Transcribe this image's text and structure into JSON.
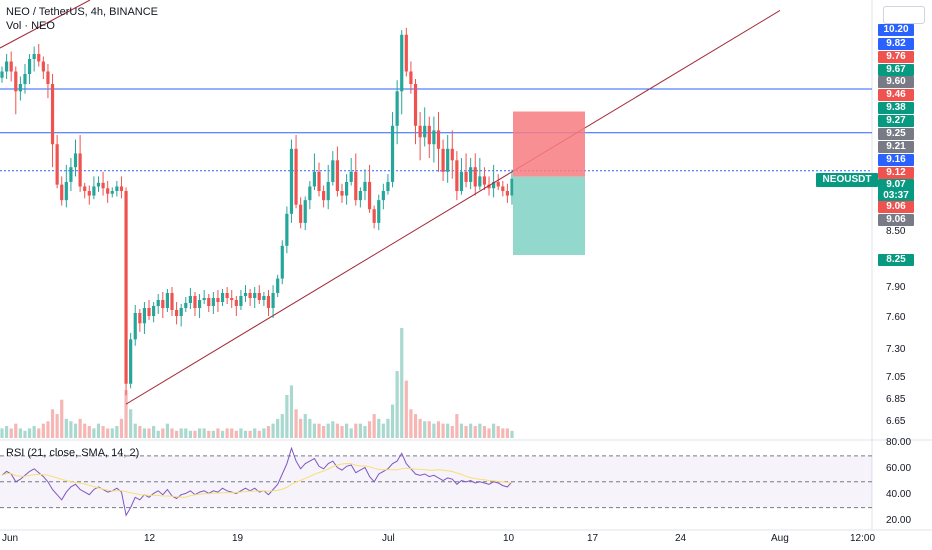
{
  "legend": {
    "title": "NEO / TetherUS, 4h, BINANCE",
    "volume": "Vol · NEO",
    "rsi": "RSI (21, close, SMA, 14, 2)"
  },
  "colors": {
    "up": "#26a69a",
    "down": "#ef5350",
    "trendline": "#a52a3a",
    "hline": "#2962ff",
    "rsi_line": "#7e57c2",
    "rsi_ma": "#f7e074",
    "stop_zone": "#f77c80",
    "target_zone": "#7fd1c4"
  },
  "price_scale": {
    "boxes": [
      {
        "label": "10.20",
        "color": "#2962ff"
      },
      {
        "label": "9.82",
        "color": "#2962ff"
      },
      {
        "label": "9.76",
        "color": "#ef5350"
      },
      {
        "label": "9.67",
        "color": "#089981"
      },
      {
        "label": "9.60",
        "color": "#787b86"
      },
      {
        "label": "9.46",
        "color": "#ef5350"
      },
      {
        "label": "9.38",
        "color": "#089981"
      },
      {
        "label": "9.27",
        "color": "#089981"
      },
      {
        "label": "9.25",
        "color": "#787b86"
      },
      {
        "label": "9.21",
        "color": "#787b86"
      },
      {
        "label": "9.16",
        "color": "#2962ff"
      },
      {
        "label": "9.12",
        "color": "#ef5350"
      },
      {
        "label": "9.07",
        "color": "#089981"
      },
      {
        "label": "03:37",
        "color": "#089981"
      },
      {
        "label": "9.06",
        "color": "#ef5350"
      },
      {
        "label": "9.06",
        "color": "#787b86"
      },
      {
        "label": "8.25",
        "color": "#089981"
      }
    ],
    "ticks": [
      "8.50",
      "7.90",
      "7.60",
      "7.30",
      "7.05",
      "6.85",
      "6.65"
    ],
    "ticker_label": "NEOUSDT"
  },
  "rsi_scale": {
    "ticks": [
      "80.00",
      "60.00",
      "40.00",
      "20.00"
    ]
  },
  "x_axis": {
    "ticks": [
      "Jun",
      "12",
      "19",
      "Jul",
      "10",
      "17",
      "24",
      "Aug",
      "12:00"
    ]
  },
  "chart_data": {
    "type": "candlestick",
    "symbol": "NEOUSDT",
    "timeframe": "4h",
    "exchange": "BINANCE",
    "price_range": [
      6.6,
      10.3
    ],
    "closes": [
      9.6,
      9.68,
      9.6,
      9.45,
      9.5,
      9.58,
      9.7,
      9.74,
      9.68,
      9.6,
      9.5,
      9.22,
      9.02,
      8.85,
      9.05,
      9.12,
      9.18,
      9.0,
      8.95,
      8.9,
      9.0,
      9.04,
      8.98,
      8.92,
      8.95,
      9.0,
      8.95,
      7.0,
      7.4,
      7.65,
      7.55,
      7.7,
      7.62,
      7.72,
      7.78,
      7.7,
      7.85,
      7.68,
      7.62,
      7.7,
      7.75,
      7.82,
      7.7,
      7.78,
      7.8,
      7.72,
      7.8,
      7.76,
      7.85,
      7.8,
      7.78,
      7.72,
      7.82,
      7.85,
      7.8,
      7.85,
      7.78,
      7.82,
      7.7,
      7.85,
      8.0,
      8.35,
      8.7,
      9.2,
      8.8,
      8.6,
      8.85,
      9.0,
      9.1,
      8.95,
      8.85,
      9.05,
      9.15,
      8.95,
      8.9,
      9.05,
      9.1,
      8.85,
      8.95,
      9.05,
      8.75,
      8.6,
      8.85,
      8.95,
      9.05,
      9.3,
      9.45,
      9.9,
      9.6,
      9.5,
      9.3,
      9.25,
      9.3,
      9.22,
      9.28,
      9.2,
      9.1,
      9.2,
      9.15,
      8.95,
      9.1,
      9.05,
      9.12,
      9.0,
      9.08,
      9.02,
      8.98,
      9.05,
      9.0,
      8.95,
      8.9,
      9.07
    ],
    "volumes": [
      0.2,
      0.25,
      0.2,
      0.3,
      0.2,
      0.15,
      0.2,
      0.25,
      0.2,
      0.3,
      0.35,
      0.6,
      0.5,
      0.8,
      0.4,
      0.35,
      0.3,
      0.4,
      0.3,
      0.25,
      0.2,
      0.3,
      0.25,
      0.2,
      0.2,
      0.25,
      0.4,
      1.0,
      0.6,
      0.3,
      0.25,
      0.2,
      0.2,
      0.25,
      0.15,
      0.2,
      0.3,
      0.2,
      0.15,
      0.2,
      0.2,
      0.15,
      0.15,
      0.2,
      0.2,
      0.15,
      0.15,
      0.2,
      0.15,
      0.2,
      0.2,
      0.15,
      0.2,
      0.15,
      0.15,
      0.2,
      0.15,
      0.2,
      0.25,
      0.3,
      0.4,
      0.5,
      0.9,
      1.1,
      0.6,
      0.4,
      0.5,
      0.4,
      0.3,
      0.3,
      0.25,
      0.3,
      0.35,
      0.3,
      0.25,
      0.3,
      0.2,
      0.3,
      0.3,
      0.25,
      0.35,
      0.5,
      0.4,
      0.3,
      0.4,
      0.7,
      1.4,
      2.3,
      1.2,
      0.6,
      0.5,
      0.4,
      0.35,
      0.35,
      0.3,
      0.35,
      0.3,
      0.3,
      0.25,
      0.5,
      0.3,
      0.25,
      0.3,
      0.25,
      0.3,
      0.25,
      0.2,
      0.3,
      0.25,
      0.2,
      0.2,
      0.15
    ],
    "rsi": [
      55,
      58,
      56,
      50,
      52,
      55,
      58,
      60,
      57,
      54,
      50,
      44,
      40,
      36,
      42,
      46,
      48,
      44,
      42,
      40,
      44,
      46,
      44,
      42,
      43,
      45,
      42,
      24,
      30,
      38,
      36,
      40,
      38,
      41,
      43,
      40,
      44,
      39,
      37,
      40,
      41,
      43,
      40,
      42,
      43,
      41,
      43,
      42,
      45,
      43,
      42,
      41,
      43,
      45,
      43,
      45,
      42,
      43,
      40,
      44,
      48,
      56,
      64,
      76,
      66,
      60,
      64,
      66,
      68,
      62,
      60,
      64,
      66,
      61,
      59,
      62,
      63,
      57,
      59,
      61,
      54,
      50,
      56,
      58,
      60,
      64,
      66,
      72,
      64,
      60,
      56,
      55,
      56,
      54,
      55,
      53,
      51,
      53,
      52,
      48,
      51,
      50,
      51,
      49,
      50,
      49,
      48,
      50,
      49,
      47,
      46,
      50
    ],
    "rsi_levels": [
      70,
      50,
      30
    ],
    "rsi_range": [
      20,
      80
    ],
    "horizontal_lines": [
      9.46,
      9.27,
      9.07
    ],
    "trendline": {
      "from": {
        "index": 27,
        "price": 6.82
      },
      "to": {
        "index": 111,
        "price": 9.1
      }
    },
    "position": {
      "entry": 9.07,
      "stop": 9.21,
      "target": 8.25
    }
  }
}
